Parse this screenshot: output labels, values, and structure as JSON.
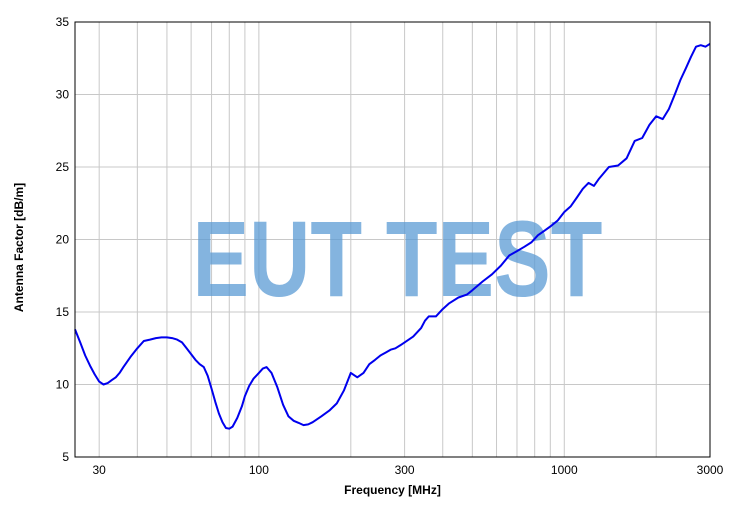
{
  "chart_data": {
    "type": "line",
    "title": "",
    "xlabel": "Frequency [MHz]",
    "ylabel": "Antenna Factor [dB/m]",
    "x_scale": "log",
    "xlim": [
      25,
      3000
    ],
    "ylim": [
      5,
      35
    ],
    "x_tick_labels": [
      {
        "value": 30,
        "label": "30"
      },
      {
        "value": 100,
        "label": "100"
      },
      {
        "value": 300,
        "label": "300"
      },
      {
        "value": 1000,
        "label": "1000"
      },
      {
        "value": 3000,
        "label": "3000"
      }
    ],
    "x_minor_gridlines": [
      40,
      50,
      60,
      70,
      80,
      90,
      200,
      400,
      500,
      600,
      700,
      800,
      900,
      2000
    ],
    "y_ticks": [
      5,
      10,
      15,
      20,
      25,
      30,
      35
    ],
    "grid": true,
    "line_color": "#0000ee",
    "watermark": {
      "text": "EUT TEST",
      "color": "#5b9bd5"
    },
    "series": [
      {
        "x": [
          25,
          26,
          27,
          28,
          29,
          30,
          31,
          32,
          33,
          34,
          35,
          36,
          38,
          40,
          42,
          44,
          46,
          48,
          50,
          52,
          54,
          56,
          58,
          60,
          62,
          64,
          66,
          68,
          70,
          72,
          74,
          76,
          78,
          80,
          82,
          85,
          88,
          90,
          93,
          96,
          100,
          103,
          106,
          110,
          115,
          120,
          125,
          130,
          135,
          140,
          145,
          150,
          160,
          170,
          180,
          190,
          200,
          210,
          220,
          230,
          240,
          250,
          260,
          270,
          280,
          290,
          300,
          320,
          340,
          350,
          360,
          380,
          400,
          420,
          450,
          480,
          500,
          540,
          580,
          620,
          660,
          700,
          740,
          780,
          820,
          860,
          900,
          950,
          1000,
          1050,
          1100,
          1150,
          1200,
          1250,
          1300,
          1400,
          1500,
          1600,
          1700,
          1800,
          1900,
          2000,
          2100,
          2200,
          2300,
          2400,
          2500,
          2600,
          2700,
          2800,
          2900,
          3000
        ],
        "y": [
          13.8,
          12.9,
          12.0,
          11.3,
          10.7,
          10.2,
          10.0,
          10.1,
          10.3,
          10.5,
          10.8,
          11.2,
          11.9,
          12.5,
          13.0,
          13.1,
          13.2,
          13.25,
          13.25,
          13.2,
          13.1,
          12.9,
          12.5,
          12.1,
          11.7,
          11.4,
          11.2,
          10.6,
          9.7,
          8.8,
          8.0,
          7.4,
          7.0,
          6.95,
          7.1,
          7.7,
          8.5,
          9.2,
          9.9,
          10.4,
          10.8,
          11.1,
          11.2,
          10.8,
          9.8,
          8.6,
          7.8,
          7.5,
          7.35,
          7.2,
          7.25,
          7.4,
          7.8,
          8.2,
          8.7,
          9.6,
          10.8,
          10.5,
          10.8,
          11.4,
          11.7,
          12.0,
          12.2,
          12.4,
          12.5,
          12.7,
          12.9,
          13.3,
          13.9,
          14.4,
          14.7,
          14.7,
          15.2,
          15.6,
          16.0,
          16.2,
          16.5,
          17.1,
          17.6,
          18.2,
          18.9,
          19.2,
          19.5,
          19.8,
          20.3,
          20.6,
          20.9,
          21.3,
          21.9,
          22.3,
          22.9,
          23.5,
          23.9,
          23.7,
          24.2,
          25.0,
          25.1,
          25.6,
          26.8,
          27.0,
          27.9,
          28.5,
          28.3,
          29.0,
          30.0,
          31.0,
          31.8,
          32.6,
          33.3,
          33.4,
          33.3,
          33.5
        ]
      }
    ]
  }
}
